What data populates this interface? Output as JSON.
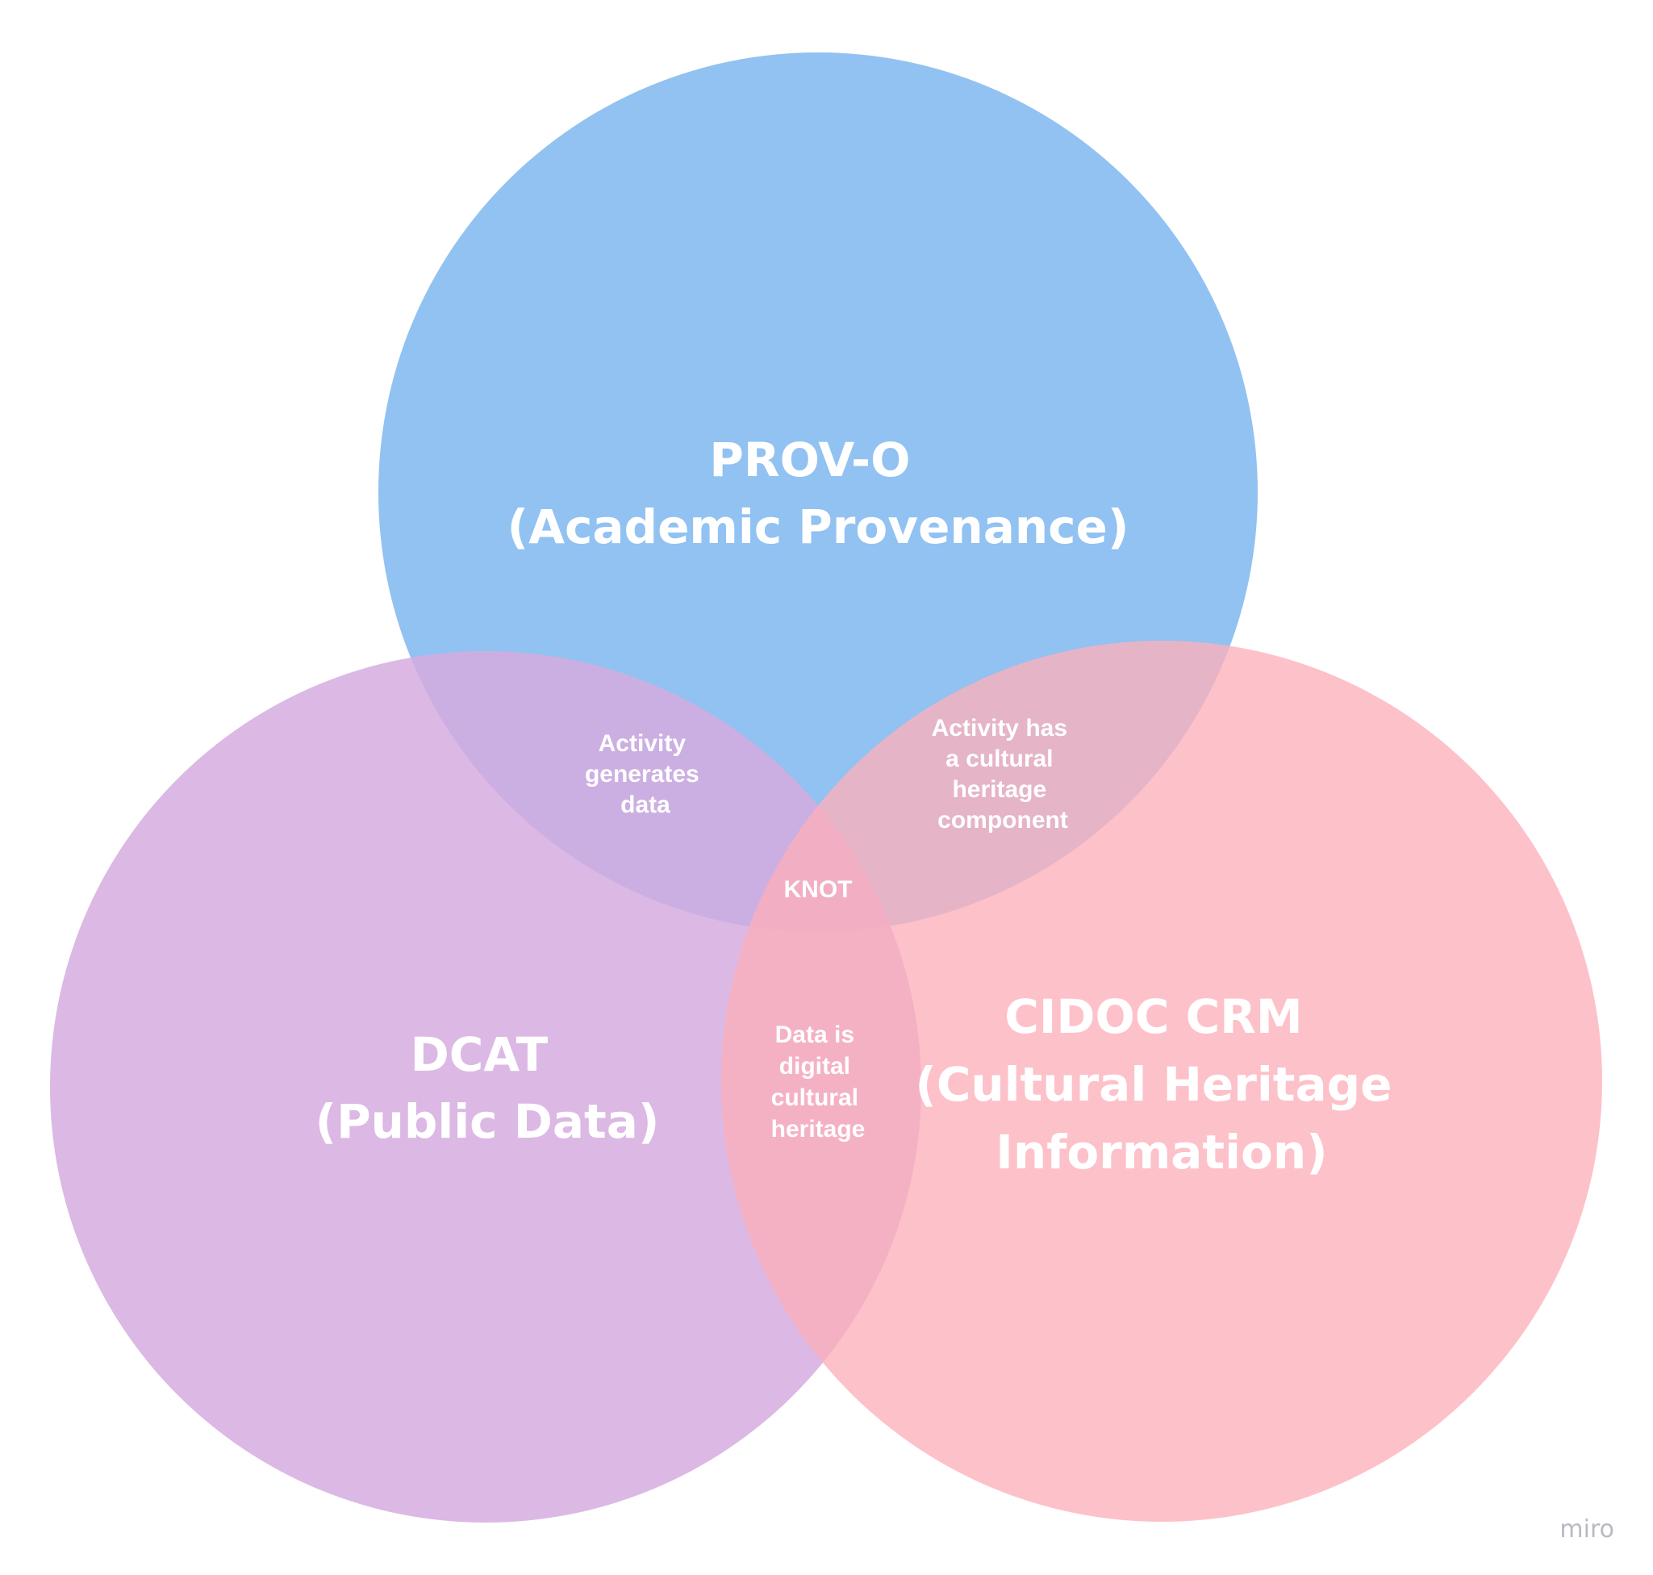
{
  "diagram": {
    "sets": [
      {
        "id": "prov",
        "lines": [
          "PROV-O",
          "(Academic Provenance)"
        ],
        "color": "#7eb7ee"
      },
      {
        "id": "dcat",
        "lines": [
          "DCAT",
          "(Public Data)"
        ],
        "color": "#d6acdf"
      },
      {
        "id": "cidoc",
        "lines": [
          "CIDOC CRM",
          "(Cultural Heritage",
          "Information)"
        ],
        "color": "#fcb0bb"
      }
    ],
    "intersections": [
      {
        "id": "prov-dcat",
        "lines": [
          "Activity",
          "generates",
          "data"
        ]
      },
      {
        "id": "prov-cidoc",
        "lines": [
          "Activity has",
          "a cultural",
          "heritage",
          "component"
        ]
      },
      {
        "id": "dcat-cidoc",
        "lines": [
          "Data is",
          "digital",
          "cultural",
          "heritage"
        ]
      },
      {
        "id": "center",
        "lines": [
          "KNOT"
        ]
      }
    ],
    "watermark": "miro"
  }
}
